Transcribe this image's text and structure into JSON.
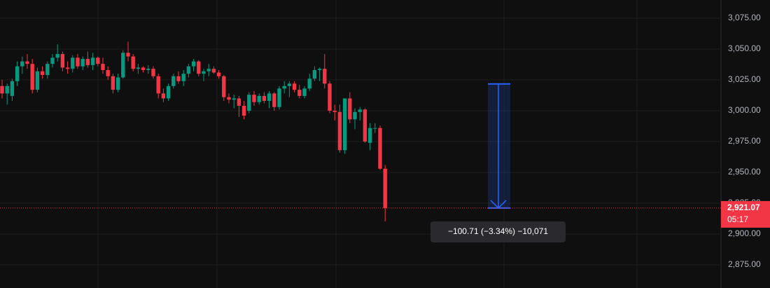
{
  "chart_data": {
    "type": "candlestick",
    "up_color": "#089981",
    "down_color": "#f23645",
    "grid": true,
    "ylim": [
      2856.25,
      3089.8
    ],
    "yticks": [
      {
        "value": 3075,
        "label": "3,075.00"
      },
      {
        "value": 3050,
        "label": "3,050.00"
      },
      {
        "value": 3025,
        "label": "3,025.00"
      },
      {
        "value": 3000,
        "label": "3,000.00"
      },
      {
        "value": 2975,
        "label": "2,975.00"
      },
      {
        "value": 2950,
        "label": "2,950.00"
      },
      {
        "value": 2925,
        "label": "2,925.00"
      },
      {
        "value": 2900,
        "label": "2,900.00"
      },
      {
        "value": 2875,
        "label": "2,875.00"
      }
    ],
    "open": [
      3020,
      3014,
      3012,
      3024,
      3036,
      3040,
      3038,
      3017,
      3032,
      3029,
      3038,
      3043,
      3046,
      3035,
      3034,
      3043,
      3036,
      3042,
      3037,
      3043,
      3038,
      3033,
      3028,
      3017,
      3027,
      3047,
      3044,
      3034,
      3035,
      3033,
      3034,
      3028,
      3014,
      3010,
      3020,
      3028,
      3024,
      3030,
      3036,
      3040,
      3030,
      3032,
      3034,
      3031,
      3028,
      3011,
      3009,
      3010,
      3004,
      3000,
      3013,
      3007,
      3012,
      3008,
      3014,
      3003,
      3018,
      3020,
      3022,
      3017,
      3012,
      3018,
      3026,
      3033,
      3034,
      3022,
      3000,
      2999,
      2968,
      3010,
      2993,
      2999,
      3001,
      2974,
      2986,
      2986,
      2953
    ],
    "high": [
      3025,
      3022,
      3026,
      3040,
      3044,
      3046,
      3042,
      3035,
      3036,
      3040,
      3046,
      3054,
      3048,
      3040,
      3045,
      3046,
      3044,
      3048,
      3047,
      3044,
      3043,
      3036,
      3030,
      3030,
      3049,
      3056,
      3046,
      3038,
      3036,
      3037,
      3036,
      3030,
      3018,
      3022,
      3030,
      3032,
      3033,
      3038,
      3042,
      3041,
      3034,
      3038,
      3036,
      3033,
      3029,
      3014,
      3013,
      3012,
      3008,
      3015,
      3016,
      3014,
      3015,
      3016,
      3015,
      3020,
      3024,
      3024,
      3024,
      3021,
      3020,
      3030,
      3036,
      3035,
      3046,
      3024,
      3005,
      3005,
      3010,
      3015,
      3002,
      3003,
      3002,
      2990,
      2990,
      2988,
      2956
    ],
    "low": [
      3010,
      3005,
      3008,
      3020,
      3030,
      3034,
      3014,
      3015,
      3026,
      3026,
      3035,
      3040,
      3032,
      3030,
      3031,
      3034,
      3033,
      3035,
      3033,
      3036,
      3030,
      3025,
      3014,
      3015,
      3026,
      3040,
      3032,
      3030,
      3031,
      3030,
      3026,
      3010,
      3007,
      3008,
      3018,
      3022,
      3020,
      3027,
      3032,
      3028,
      3024,
      3028,
      3030,
      3026,
      3008,
      3006,
      3002,
      2995,
      2993,
      2998,
      3004,
      3005,
      3006,
      3002,
      3000,
      3001,
      3014,
      3011,
      3015,
      3010,
      3010,
      3016,
      3024,
      3024,
      3018,
      2998,
      2992,
      2966,
      2965,
      2990,
      2985,
      2992,
      2974,
      2968,
      2982,
      2952,
      2910.2
    ],
    "close": [
      3014,
      3020,
      3024,
      3036,
      3040,
      3038,
      3017,
      3032,
      3029,
      3038,
      3043,
      3046,
      3035,
      3034,
      3043,
      3036,
      3042,
      3037,
      3043,
      3038,
      3033,
      3028,
      3017,
      3027,
      3047,
      3044,
      3034,
      3035,
      3033,
      3034,
      3028,
      3014,
      3010,
      3020,
      3028,
      3024,
      3030,
      3036,
      3040,
      3030,
      3032,
      3034,
      3031,
      3028,
      3011,
      3009,
      3010,
      3004,
      2996,
      3013,
      3007,
      3012,
      3008,
      3014,
      3003,
      3018,
      3020,
      3022,
      3017,
      3012,
      3018,
      3026,
      3033,
      3034,
      3022,
      3000,
      2999,
      2968,
      3010,
      2993,
      2999,
      3001,
      2975,
      2986,
      2986,
      2953,
      2921.07
    ],
    "last_price": {
      "value": 2921.07,
      "label": "2,921.07"
    },
    "countdown": "05:17",
    "measure": {
      "from": 3021.78,
      "to": 2921.07,
      "label": "−100.71 (−3.34%) −10,071"
    }
  }
}
